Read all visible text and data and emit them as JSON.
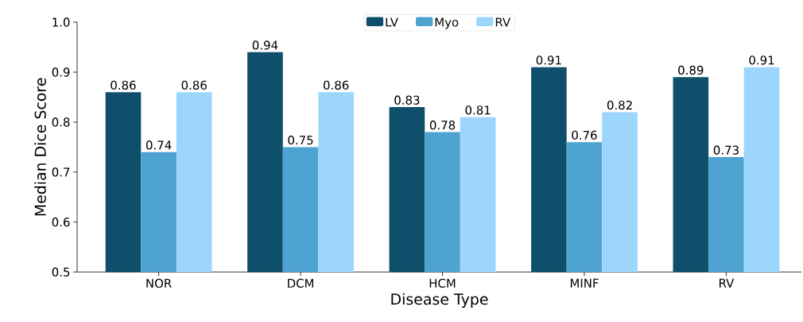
{
  "chart_data": {
    "type": "bar",
    "xlabel": "Disease Type",
    "ylabel": "Median Dice Score",
    "categories": [
      "NOR",
      "DCM",
      "HCM",
      "MINF",
      "RV"
    ],
    "series": [
      {
        "name": "LV",
        "color": "#0e4f6b",
        "values": [
          0.86,
          0.94,
          0.83,
          0.91,
          0.89
        ]
      },
      {
        "name": "Myo",
        "color": "#4fa3d1",
        "values": [
          0.74,
          0.75,
          0.78,
          0.76,
          0.73
        ]
      },
      {
        "name": "RV",
        "color": "#9dd6fd",
        "values": [
          0.86,
          0.86,
          0.81,
          0.82,
          0.91
        ]
      }
    ],
    "ylim": [
      0.5,
      1.0
    ],
    "yticks": [
      0.5,
      0.6,
      0.7,
      0.8,
      0.9,
      {
        "value": 1,
        "label": "1.0"
      }
    ],
    "data_labels": true,
    "legend": "top"
  }
}
